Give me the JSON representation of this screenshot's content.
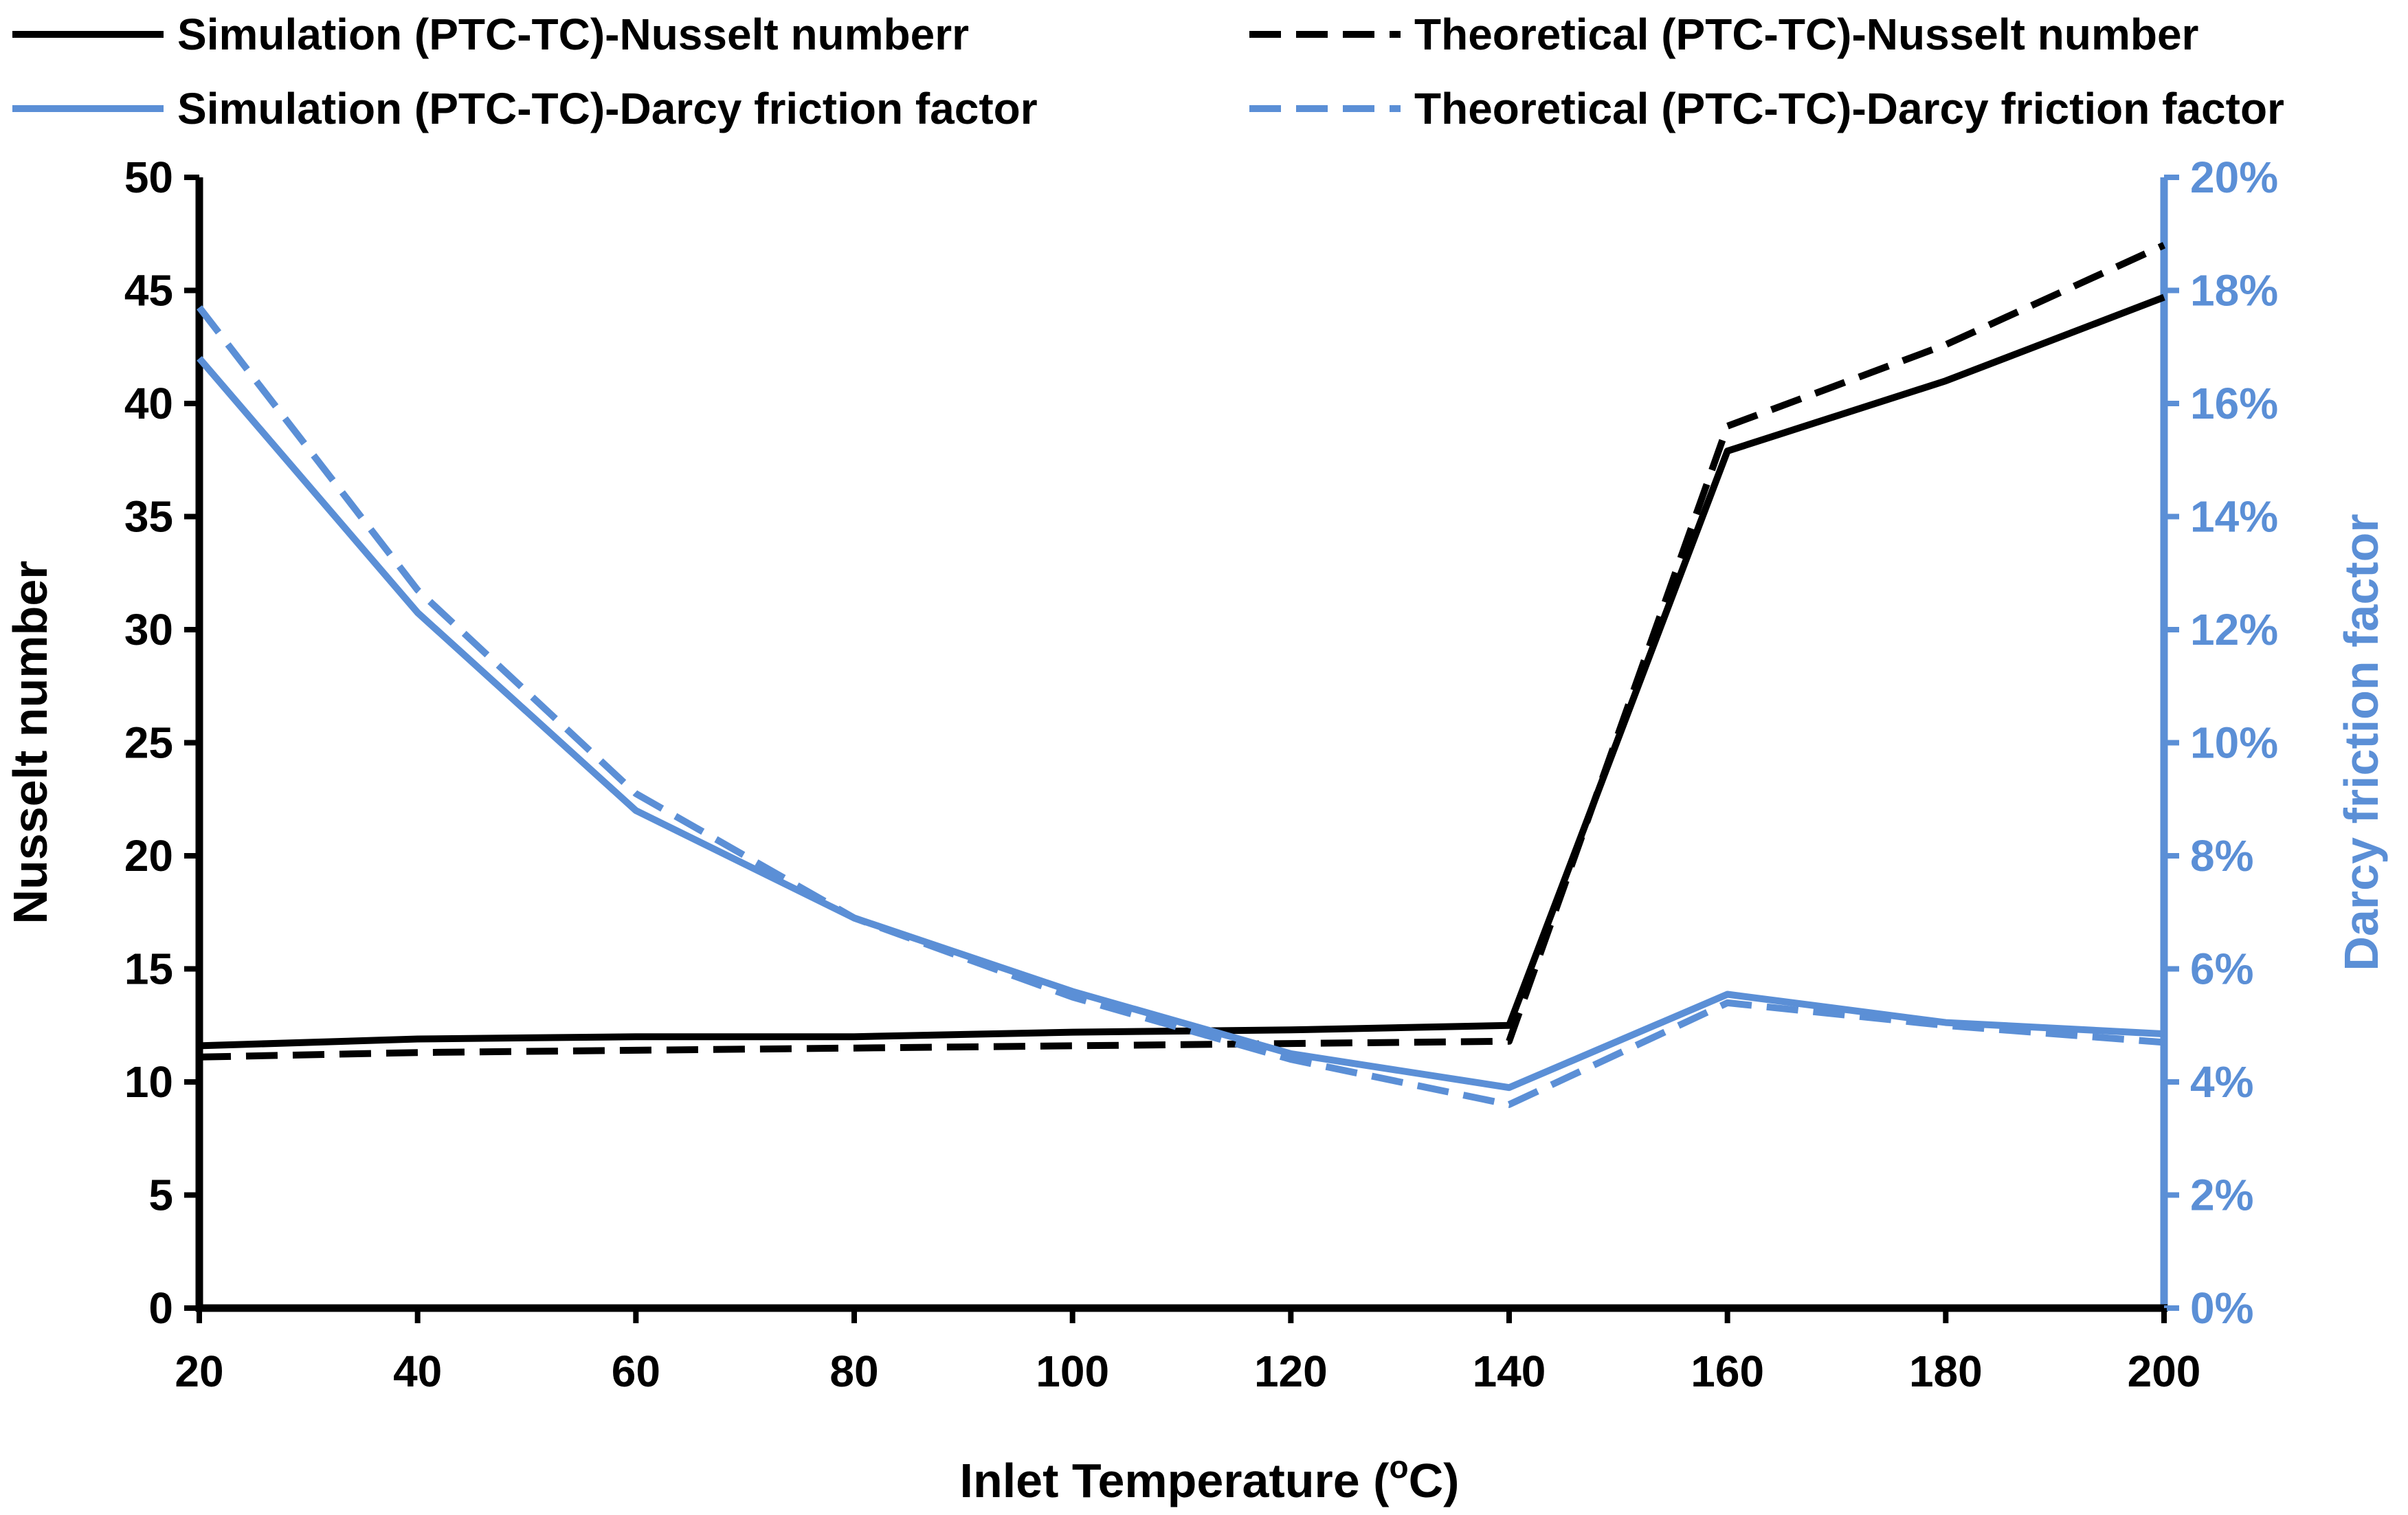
{
  "chart_data": {
    "type": "line",
    "title": "",
    "xlabel": "Inlet Temperature (°C)",
    "xlabel_parts": {
      "prefix": "Inlet Temperature (",
      "superscript": "o",
      "suffix": "C)"
    },
    "ylabel_left": "Nusselt number",
    "ylabel_right": "Darcy friction factor",
    "x": [
      20,
      40,
      60,
      80,
      100,
      120,
      140,
      160,
      180,
      200
    ],
    "x_ticks": [
      "20",
      "40",
      "60",
      "80",
      "100",
      "120",
      "140",
      "160",
      "180",
      "200"
    ],
    "xlim": [
      20,
      200
    ],
    "ylim_left": [
      0,
      50
    ],
    "ylim_right": [
      0,
      0.2
    ],
    "left_ticks": [
      "0",
      "5",
      "10",
      "15",
      "20",
      "25",
      "30",
      "35",
      "40",
      "45",
      "50"
    ],
    "right_ticks": [
      "0%",
      "2%",
      "4%",
      "6%",
      "8%",
      "10%",
      "12%",
      "14%",
      "16%",
      "18%",
      "20%"
    ],
    "grid": false,
    "legend_position": "top",
    "series": [
      {
        "name": "Simulation (PTC-TC)-Nusselt numberr",
        "axis": "left",
        "color": "#000000",
        "style": "solid",
        "values": [
          11.6,
          11.9,
          12.0,
          12.0,
          12.2,
          12.3,
          12.5,
          37.9,
          41.0,
          44.7
        ]
      },
      {
        "name": "Theoretical (PTC-TC)-Nusselt number",
        "axis": "left",
        "color": "#000000",
        "style": "dashed",
        "values": [
          11.1,
          11.3,
          11.4,
          11.5,
          11.6,
          11.7,
          11.8,
          39.0,
          42.6,
          47.0
        ]
      },
      {
        "name": "Simulation (PTC-TC)-Darcy friction factor",
        "axis": "right",
        "color": "#5b8fd6",
        "style": "solid",
        "values": [
          0.168,
          0.123,
          0.088,
          0.069,
          0.056,
          0.045,
          0.039,
          0.0555,
          0.0505,
          0.0485
        ]
      },
      {
        "name": "Theoretical (PTC-TC)-Darcy friction factor",
        "axis": "right",
        "color": "#5b8fd6",
        "style": "dashed",
        "values": [
          0.177,
          0.127,
          0.091,
          0.069,
          0.055,
          0.044,
          0.036,
          0.054,
          0.05,
          0.047
        ]
      }
    ]
  }
}
